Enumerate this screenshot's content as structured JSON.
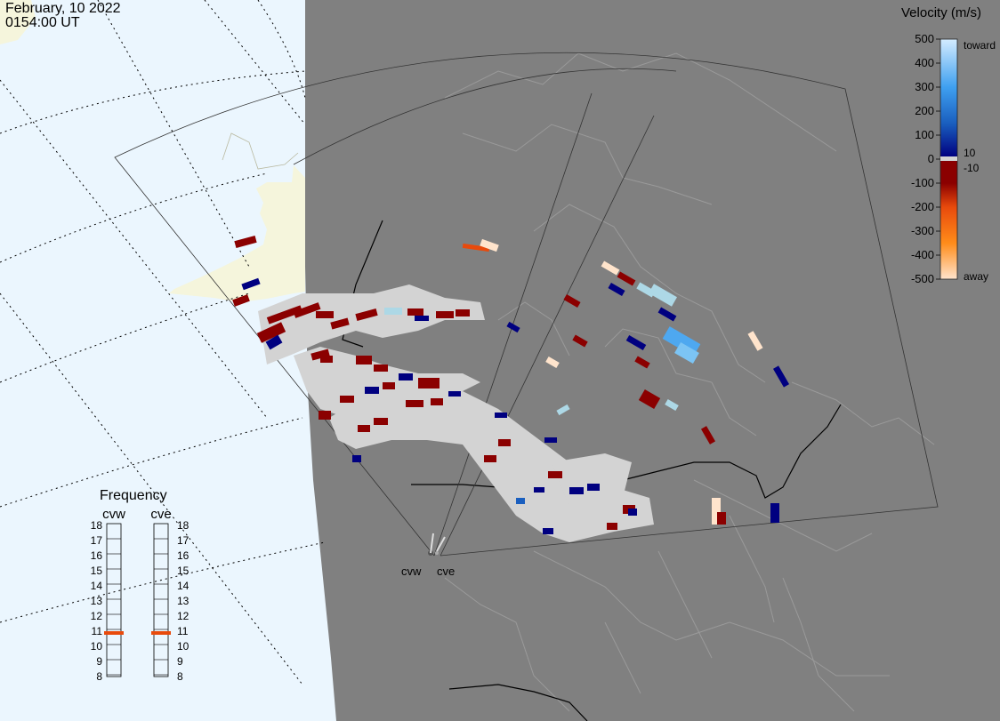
{
  "header": {
    "date": "February, 10 2022",
    "time": "0154:00 UT"
  },
  "colorbar": {
    "title": "Velocity (m/s)",
    "ticks": [
      "500",
      "400",
      "300",
      "200",
      "100",
      "0",
      "-100",
      "-200",
      "-300",
      "-400",
      "-500"
    ],
    "toward_label": "toward",
    "away_label": "away",
    "threshold_pos": "10",
    "threshold_neg": "-10",
    "stops": [
      "#ffe4cc",
      "#ff8c1a",
      "#e84a0c",
      "#8b0000",
      "#8b0000",
      "#000080",
      "#1a5fbf",
      "#3fa0f0",
      "#d4ecff"
    ]
  },
  "frequency": {
    "title": "Frequency",
    "radars": [
      {
        "name": "cvw",
        "selected_mhz": 11
      },
      {
        "name": "cve",
        "selected_mhz": 11
      }
    ],
    "scale": [
      "18",
      "17",
      "16",
      "15",
      "14",
      "13",
      "12",
      "11",
      "10",
      "9",
      "8"
    ],
    "marker_color": "#e84a0c"
  },
  "radar_labels": {
    "cvw": "cvw",
    "cve": "cve"
  },
  "colors": {
    "ocean": "#ebf6fe",
    "land_lit": "#f5f5dc",
    "land_night": "#808080",
    "unclassified_scatter": "#d3d3d3",
    "toward_dark": "#000080",
    "away_dark": "#8b0000"
  }
}
